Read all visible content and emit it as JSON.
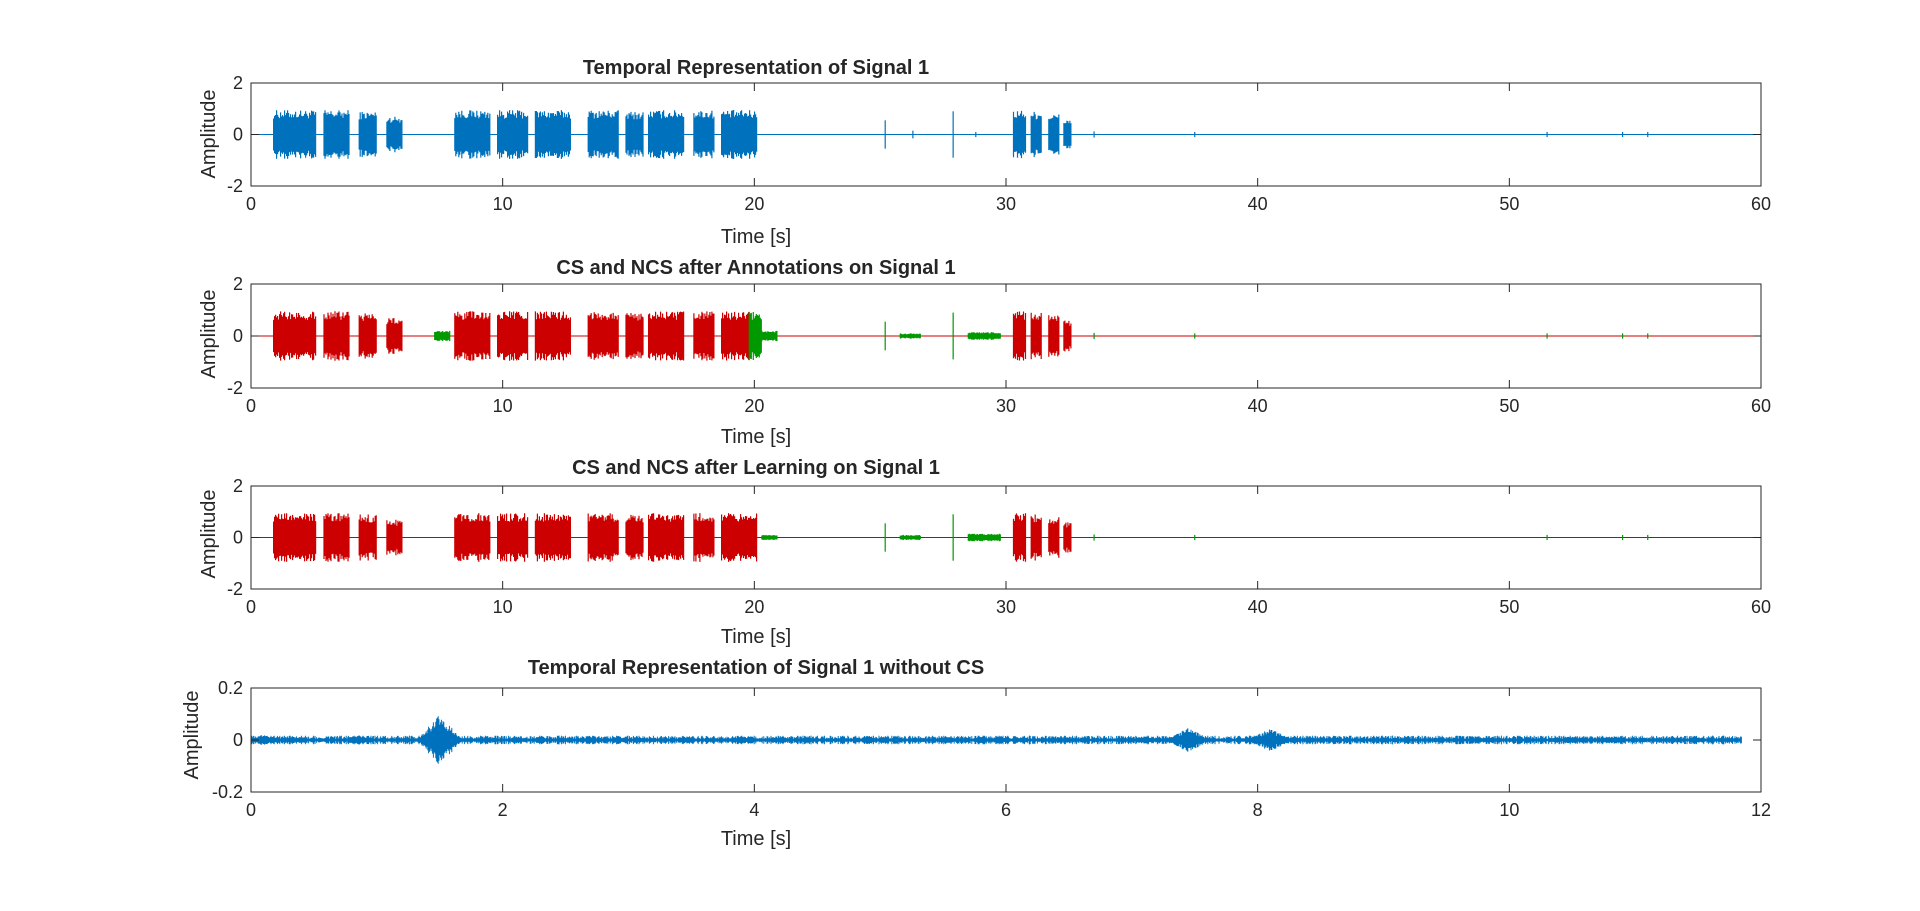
{
  "colors": {
    "signal": "#0072BD",
    "cs": "#CC0000",
    "ncs": "#009900",
    "axes": "#262626",
    "background": "#ffffff"
  },
  "chart_data": [
    {
      "type": "line",
      "title": "Temporal Representation of Signal 1",
      "xlabel": "Time [s]",
      "ylabel": "Amplitude",
      "xlim": [
        0,
        60
      ],
      "ylim": [
        -2,
        2
      ],
      "xticks": [
        "0",
        "10",
        "20",
        "30",
        "40",
        "50",
        "60"
      ],
      "yticks": [
        "-2",
        "0",
        "2"
      ],
      "grid": false,
      "series": [
        {
          "color": "#0072BD",
          "bursts": [
            [
              0.9,
              2.6,
              0.95
            ],
            [
              2.9,
              3.9,
              0.95
            ],
            [
              4.3,
              5.0,
              0.9
            ],
            [
              5.4,
              6.0,
              0.7
            ],
            [
              8.1,
              9.5,
              0.95
            ],
            [
              9.8,
              11.0,
              0.95
            ],
            [
              11.3,
              12.7,
              0.95
            ],
            [
              13.4,
              14.6,
              0.95
            ],
            [
              14.9,
              15.6,
              0.9
            ],
            [
              15.8,
              17.2,
              0.95
            ],
            [
              17.6,
              18.4,
              0.95
            ],
            [
              18.7,
              20.1,
              0.95
            ],
            [
              30.3,
              30.8,
              0.95
            ],
            [
              31.0,
              31.4,
              0.9
            ],
            [
              31.7,
              32.1,
              0.8
            ],
            [
              32.3,
              32.6,
              0.6
            ]
          ],
          "spikes": [
            [
              25.2,
              0.55
            ],
            [
              27.9,
              0.9
            ],
            [
              26.3,
              0.15
            ],
            [
              28.8,
              0.1
            ],
            [
              33.5,
              0.12
            ],
            [
              37.5,
              0.1
            ],
            [
              51.5,
              0.1
            ],
            [
              54.5,
              0.1
            ],
            [
              55.5,
              0.1
            ]
          ]
        }
      ]
    },
    {
      "type": "line",
      "title": "CS and NCS after Annotations on Signal 1",
      "xlabel": "Time [s]",
      "ylabel": "Amplitude",
      "xlim": [
        0,
        60
      ],
      "ylim": [
        -2,
        2
      ],
      "xticks": [
        "0",
        "10",
        "20",
        "30",
        "40",
        "50",
        "60"
      ],
      "yticks": [
        "-2",
        "0",
        "2"
      ],
      "grid": false,
      "series": [
        {
          "color": "#CC0000",
          "bursts": [
            [
              0.9,
              2.6,
              0.95
            ],
            [
              2.9,
              3.9,
              0.95
            ],
            [
              4.3,
              5.0,
              0.9
            ],
            [
              5.4,
              6.0,
              0.7
            ],
            [
              8.1,
              9.5,
              0.95
            ],
            [
              9.8,
              11.0,
              0.95
            ],
            [
              11.3,
              12.7,
              0.95
            ],
            [
              13.4,
              14.6,
              0.95
            ],
            [
              14.9,
              15.6,
              0.9
            ],
            [
              15.8,
              17.2,
              0.95
            ],
            [
              17.6,
              18.4,
              0.95
            ],
            [
              18.7,
              19.8,
              0.95
            ],
            [
              30.3,
              30.8,
              0.95
            ],
            [
              31.0,
              31.4,
              0.9
            ],
            [
              31.7,
              32.1,
              0.8
            ],
            [
              32.3,
              32.6,
              0.6
            ]
          ],
          "spikes": []
        },
        {
          "color": "#009900",
          "bursts": [
            [
              7.3,
              7.9,
              0.2
            ],
            [
              19.8,
              20.3,
              0.95
            ],
            [
              20.3,
              20.9,
              0.2
            ],
            [
              25.8,
              26.6,
              0.1
            ],
            [
              28.5,
              29.8,
              0.15
            ]
          ],
          "spikes": [
            [
              25.2,
              0.55
            ],
            [
              27.9,
              0.9
            ],
            [
              33.5,
              0.12
            ],
            [
              37.5,
              0.1
            ],
            [
              51.5,
              0.1
            ],
            [
              54.5,
              0.1
            ],
            [
              55.5,
              0.1
            ]
          ]
        }
      ]
    },
    {
      "type": "line",
      "title": "CS and NCS after Learning on Signal 1",
      "xlabel": "Time [s]",
      "ylabel": "Amplitude",
      "xlim": [
        0,
        60
      ],
      "ylim": [
        -2,
        2
      ],
      "xticks": [
        "0",
        "10",
        "20",
        "30",
        "40",
        "50",
        "60"
      ],
      "yticks": [
        "-2",
        "0",
        "2"
      ],
      "grid": false,
      "series": [
        {
          "color": "#CC0000",
          "bursts": [
            [
              0.9,
              2.6,
              0.95
            ],
            [
              2.9,
              3.9,
              0.95
            ],
            [
              4.3,
              5.0,
              0.9
            ],
            [
              5.4,
              6.0,
              0.7
            ],
            [
              8.1,
              9.5,
              0.95
            ],
            [
              9.8,
              11.0,
              0.95
            ],
            [
              11.3,
              12.7,
              0.95
            ],
            [
              13.4,
              14.6,
              0.95
            ],
            [
              14.9,
              15.6,
              0.9
            ],
            [
              15.8,
              17.2,
              0.95
            ],
            [
              17.6,
              18.4,
              0.95
            ],
            [
              18.7,
              20.1,
              0.95
            ],
            [
              30.3,
              30.8,
              0.95
            ],
            [
              31.0,
              31.4,
              0.9
            ],
            [
              31.7,
              32.1,
              0.8
            ],
            [
              32.3,
              32.6,
              0.6
            ]
          ],
          "spikes": []
        },
        {
          "color": "#009900",
          "bursts": [
            [
              20.3,
              20.9,
              0.1
            ],
            [
              25.8,
              26.6,
              0.1
            ],
            [
              28.5,
              29.8,
              0.15
            ]
          ],
          "spikes": [
            [
              25.2,
              0.55
            ],
            [
              27.9,
              0.9
            ],
            [
              33.5,
              0.12
            ],
            [
              37.5,
              0.1
            ],
            [
              51.5,
              0.1
            ],
            [
              54.5,
              0.1
            ],
            [
              55.5,
              0.1
            ]
          ]
        }
      ]
    },
    {
      "type": "line",
      "title": "Temporal Representation of Signal 1 without CS",
      "xlabel": "Time [s]",
      "ylabel": "Amplitude",
      "xlim": [
        0,
        12
      ],
      "ylim": [
        -0.2,
        0.2
      ],
      "xticks": [
        "0",
        "2",
        "4",
        "6",
        "8",
        "10",
        "12"
      ],
      "yticks": [
        "-0.2",
        "0",
        "0.2"
      ],
      "grid": false,
      "series": [
        {
          "color": "#0072BD",
          "noise": {
            "start": 0,
            "end": 11.85,
            "amplitude": 0.012
          },
          "events": [
            [
              1.5,
              0.1
            ],
            [
              0.1,
              0.02
            ],
            [
              0.85,
              0.02
            ],
            [
              7.45,
              0.05
            ],
            [
              8.1,
              0.045
            ]
          ]
        }
      ]
    }
  ]
}
